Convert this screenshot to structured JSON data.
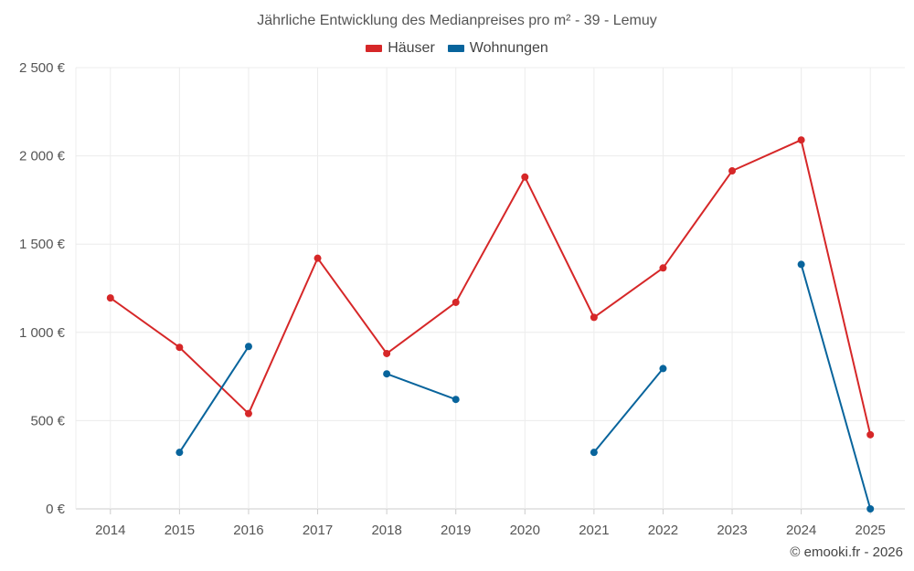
{
  "chart_data": {
    "type": "line",
    "title": "Jährliche Entwicklung des Medianpreises pro m² - 39 - Lemuy",
    "categories": [
      "2014",
      "2015",
      "2016",
      "2017",
      "2018",
      "2019",
      "2020",
      "2021",
      "2022",
      "2023",
      "2024",
      "2025"
    ],
    "series": [
      {
        "name": "Häuser",
        "color": "#d62728",
        "values": [
          1195,
          915,
          540,
          1420,
          880,
          1170,
          1880,
          1085,
          1365,
          1915,
          2090,
          420
        ]
      },
      {
        "name": "Wohnungen",
        "color": "#08649c",
        "values": [
          null,
          320,
          920,
          null,
          765,
          620,
          null,
          320,
          795,
          null,
          1385,
          0
        ]
      }
    ],
    "ylim": [
      0,
      2500
    ],
    "yticks": [
      0,
      500,
      1000,
      1500,
      2000,
      2500
    ],
    "ytick_labels": [
      "0 €",
      "500 €",
      "1 000 €",
      "1 500 €",
      "2 000 €",
      "2 500 €"
    ],
    "xlabel": "",
    "ylabel": "",
    "grid": true,
    "legend": "top-center"
  },
  "credit": "© emooki.fr - 2026"
}
